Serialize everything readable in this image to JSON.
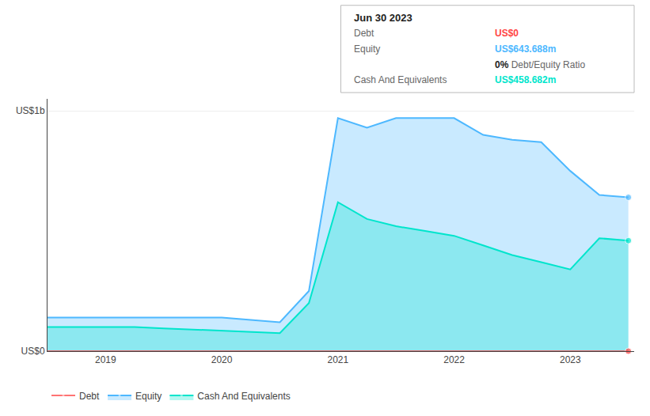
{
  "chart_data": {
    "type": "area",
    "x": [
      2018.5,
      2019.0,
      2019.25,
      2019.5,
      2019.75,
      2020.0,
      2020.25,
      2020.5,
      2020.75,
      2021.0,
      2021.25,
      2021.5,
      2021.75,
      2022.0,
      2022.25,
      2022.5,
      2022.75,
      2023.0,
      2023.25,
      2023.5
    ],
    "series": [
      {
        "name": "Debt",
        "color": "#ff4444",
        "type": "line",
        "values": [
          0.0,
          0.0,
          0.0,
          0.0,
          0.0,
          0.0,
          0.0,
          0.0,
          0.0,
          0.0,
          0.0,
          0.0,
          0.0,
          0.0,
          0.0,
          0.0,
          0.0,
          0.0,
          0.0,
          0.0
        ]
      },
      {
        "name": "Equity",
        "color": "#4db8ff",
        "type": "area",
        "values": [
          0.14,
          0.14,
          0.14,
          0.14,
          0.14,
          0.14,
          0.13,
          0.12,
          0.25,
          0.97,
          0.93,
          0.97,
          0.97,
          0.97,
          0.9,
          0.88,
          0.87,
          0.75,
          0.65,
          0.64
        ]
      },
      {
        "name": "Cash And Equivalents",
        "color": "#00e5cc",
        "type": "area",
        "values": [
          0.1,
          0.1,
          0.1,
          0.095,
          0.09,
          0.085,
          0.08,
          0.075,
          0.2,
          0.62,
          0.55,
          0.52,
          0.5,
          0.48,
          0.44,
          0.4,
          0.37,
          0.34,
          0.47,
          0.46
        ]
      }
    ],
    "xlim": [
      2018.5,
      2023.55
    ],
    "xticks": [
      2019,
      2020,
      2021,
      2022,
      2023
    ],
    "ylim": [
      0,
      1.05
    ],
    "yticks": [
      {
        "value": 0,
        "label": "US$0"
      },
      {
        "value": 1,
        "label": "US$1b"
      }
    ],
    "grid": true,
    "legend": "bottom",
    "annotations": [
      {
        "text": "Jun 30 2023"
      },
      {
        "label": "Debt",
        "text": "US$0",
        "color": "#ff4444"
      },
      {
        "label": "Equity",
        "text": "US$643.688m",
        "color": "#4db8ff"
      },
      {
        "text": "0%",
        "note": "Debt/Equity Ratio"
      },
      {
        "label": "Cash And Equivalents",
        "text": "US$458.682m",
        "color": "#00e5cc"
      }
    ]
  }
}
